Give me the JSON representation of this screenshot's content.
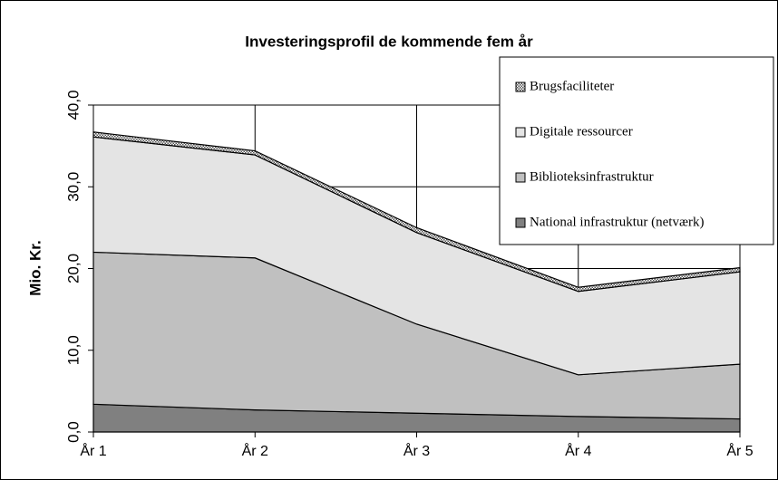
{
  "chart_data": {
    "type": "stacked_area",
    "title": "Investeringsprofil de kommende fem år",
    "y_label": "Mio. Kr.",
    "categories": [
      "År 1",
      "År 2",
      "År 3",
      "År 4",
      "År 5"
    ],
    "series": [
      {
        "name": "National infrastruktur (netværk)",
        "color": "#808080",
        "values": [
          3.4,
          2.7,
          2.3,
          1.9,
          1.6
        ]
      },
      {
        "name": "Biblioteksinfrastruktur",
        "color": "#c0c0c0",
        "values": [
          18.6,
          18.6,
          10.9,
          5.1,
          6.7
        ]
      },
      {
        "name": "Digitale ressourcer",
        "color": "#e4e4e4",
        "values": [
          14.1,
          12.6,
          11.2,
          10.2,
          11.3
        ]
      },
      {
        "name": "Brugsfaciliteter",
        "color": "#bdbdbd",
        "values": [
          0.6,
          0.5,
          0.6,
          0.5,
          0.5
        ]
      }
    ],
    "ylim": [
      0,
      40
    ],
    "yticks": [
      {
        "value": 0,
        "label": "0,0"
      },
      {
        "value": 10,
        "label": "10,0"
      },
      {
        "value": 20,
        "label": "20,0"
      },
      {
        "value": 30,
        "label": "30,0"
      },
      {
        "value": 40,
        "label": "40,0"
      }
    ],
    "grid": true,
    "legend": "top-right"
  }
}
